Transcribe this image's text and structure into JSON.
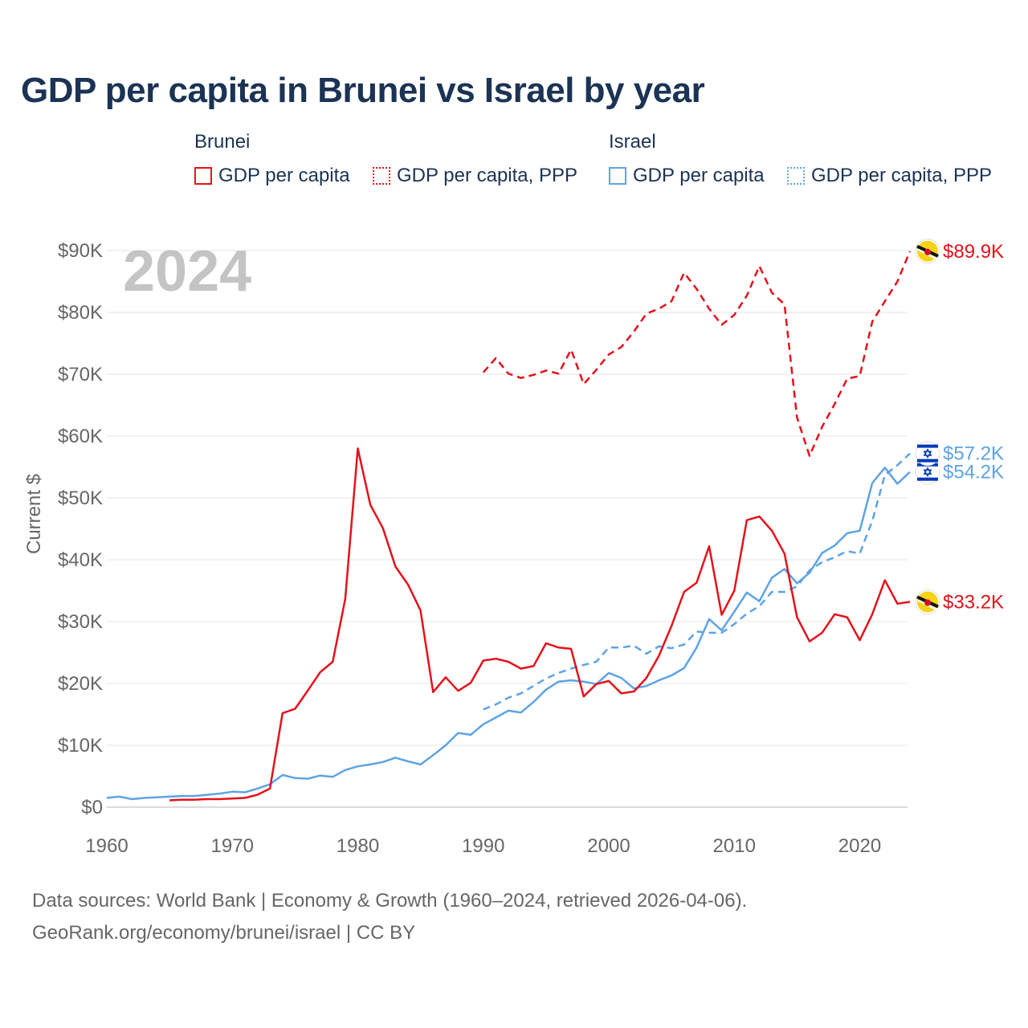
{
  "title": "GDP per capita in Brunei vs Israel by year",
  "legend": {
    "groups": [
      {
        "name": "Brunei",
        "color": "#e3121b",
        "items": [
          {
            "label": "GDP per capita",
            "style": "solid"
          },
          {
            "label": "GDP per capita, PPP",
            "style": "dotted"
          }
        ]
      },
      {
        "name": "Israel",
        "color": "#5ea3e6",
        "items": [
          {
            "label": "GDP per capita",
            "style": "solid"
          },
          {
            "label": "GDP per capita, PPP",
            "style": "dotted"
          }
        ]
      }
    ]
  },
  "year_watermark": "2024",
  "chart_data": {
    "type": "line",
    "title": "GDP per capita in Brunei vs Israel by year",
    "xlabel": "",
    "ylabel": "Current $",
    "xlim": [
      1960,
      2024
    ],
    "ylim": [
      0,
      90000
    ],
    "x_ticks": [
      1960,
      1970,
      1980,
      1990,
      2000,
      2010,
      2020
    ],
    "x_tick_labels": [
      "1960",
      "1970",
      "1980",
      "1990",
      "2000",
      "2010",
      "2020"
    ],
    "y_ticks": [
      0,
      10000,
      20000,
      30000,
      40000,
      50000,
      60000,
      70000,
      80000,
      90000
    ],
    "y_tick_labels": [
      "$0",
      "$10K",
      "$20K",
      "$30K",
      "$40K",
      "$50K",
      "$60K",
      "$70K",
      "$80K",
      "$90K"
    ],
    "grid": true,
    "series": [
      {
        "name": "Brunei GDP per capita",
        "country": "Brunei",
        "color": "#e3121b",
        "dash": "solid",
        "x": [
          1965,
          1966,
          1967,
          1968,
          1969,
          1970,
          1971,
          1972,
          1973,
          1974,
          1975,
          1976,
          1977,
          1978,
          1979,
          1980,
          1981,
          1982,
          1983,
          1984,
          1985,
          1986,
          1987,
          1988,
          1989,
          1990,
          1991,
          1992,
          1993,
          1994,
          1995,
          1996,
          1997,
          1998,
          1999,
          2000,
          2001,
          2002,
          2003,
          2004,
          2005,
          2006,
          2007,
          2008,
          2009,
          2010,
          2011,
          2012,
          2013,
          2014,
          2015,
          2016,
          2017,
          2018,
          2019,
          2020,
          2021,
          2022,
          2023,
          2024
        ],
        "y": [
          1100,
          1200,
          1200,
          1300,
          1300,
          1400,
          1500,
          2000,
          3000,
          15200,
          15900,
          18800,
          21800,
          23500,
          33700,
          58000,
          48900,
          45100,
          38900,
          36000,
          31800,
          18600,
          21000,
          18800,
          20100,
          23700,
          24000,
          23500,
          22400,
          22800,
          26500,
          25800,
          25600,
          17900,
          19900,
          20400,
          18400,
          18700,
          20900,
          24500,
          29300,
          34800,
          36300,
          42200,
          31100,
          35000,
          46400,
          47000,
          44700,
          41000,
          30700,
          26800,
          28200,
          31200,
          30700,
          27000,
          31200,
          36700,
          32900,
          33200
        ],
        "end_label": "$33.2K"
      },
      {
        "name": "Brunei GDP per capita, PPP",
        "country": "Brunei",
        "color": "#e3121b",
        "dash": "dashed",
        "x": [
          1990,
          1991,
          1992,
          1993,
          1994,
          1995,
          1996,
          1997,
          1998,
          1999,
          2000,
          2001,
          2002,
          2003,
          2004,
          2005,
          2006,
          2007,
          2008,
          2009,
          2010,
          2011,
          2012,
          2013,
          2014,
          2015,
          2016,
          2017,
          2018,
          2019,
          2020,
          2021,
          2022,
          2023,
          2024
        ],
        "y": [
          70300,
          72600,
          70100,
          69400,
          69900,
          70600,
          70100,
          74000,
          68400,
          70700,
          73200,
          74400,
          76900,
          79800,
          80600,
          81800,
          86400,
          83800,
          80600,
          78000,
          79600,
          82700,
          87500,
          83200,
          81300,
          63000,
          56800,
          61500,
          65200,
          69300,
          69700,
          78500,
          81800,
          85000,
          89900
        ],
        "end_label": "$89.9K"
      },
      {
        "name": "Israel GDP per capita",
        "country": "Israel",
        "color": "#5ea3e6",
        "dash": "solid",
        "x": [
          1960,
          1961,
          1962,
          1963,
          1964,
          1965,
          1966,
          1967,
          1968,
          1969,
          1970,
          1971,
          1972,
          1973,
          1974,
          1975,
          1976,
          1977,
          1978,
          1979,
          1980,
          1981,
          1982,
          1983,
          1984,
          1985,
          1986,
          1987,
          1988,
          1989,
          1990,
          1991,
          1992,
          1993,
          1994,
          1995,
          1996,
          1997,
          1998,
          1999,
          2000,
          2001,
          2002,
          2003,
          2004,
          2005,
          2006,
          2007,
          2008,
          2009,
          2010,
          2011,
          2012,
          2013,
          2014,
          2015,
          2016,
          2017,
          2018,
          2019,
          2020,
          2021,
          2022,
          2023,
          2024
        ],
        "y": [
          1500,
          1700,
          1300,
          1500,
          1600,
          1700,
          1800,
          1800,
          2000,
          2200,
          2500,
          2400,
          3000,
          3700,
          5200,
          4700,
          4600,
          5100,
          4900,
          6000,
          6600,
          6900,
          7300,
          8000,
          7400,
          6900,
          8400,
          10000,
          12000,
          11700,
          13400,
          14500,
          15600,
          15300,
          17000,
          19000,
          20300,
          20500,
          20300,
          19900,
          21700,
          20900,
          19200,
          19600,
          20500,
          21300,
          22500,
          25800,
          30400,
          28600,
          31600,
          34700,
          33300,
          37100,
          38500,
          36200,
          37900,
          41100,
          42300,
          44300,
          44700,
          52400,
          54900,
          52300,
          54200
        ],
        "end_label": "$54.2K"
      },
      {
        "name": "Israel GDP per capita, PPP",
        "country": "Israel",
        "color": "#5ea3e6",
        "dash": "dashed",
        "x": [
          1990,
          1991,
          1992,
          1993,
          1994,
          1995,
          1996,
          1997,
          1998,
          1999,
          2000,
          2001,
          2002,
          2003,
          2004,
          2005,
          2006,
          2007,
          2008,
          2009,
          2010,
          2011,
          2012,
          2013,
          2014,
          2015,
          2016,
          2017,
          2018,
          2019,
          2020,
          2021,
          2022,
          2023,
          2024
        ],
        "y": [
          15800,
          16600,
          17700,
          18400,
          19600,
          20800,
          21700,
          22400,
          23000,
          23500,
          25800,
          25800,
          26100,
          24800,
          26000,
          25700,
          26300,
          28400,
          28200,
          28200,
          29600,
          31300,
          32500,
          34800,
          34800,
          35700,
          38300,
          39600,
          40400,
          41400,
          41000,
          46300,
          53700,
          55300,
          57200
        ],
        "end_label": "$57.2K"
      }
    ]
  },
  "footer": {
    "line1": "Data sources: World Bank | Economy & Growth (1960–2024, retrieved 2026-04-06).",
    "line2": "GeoRank.org/economy/brunei/israel | CC BY"
  }
}
